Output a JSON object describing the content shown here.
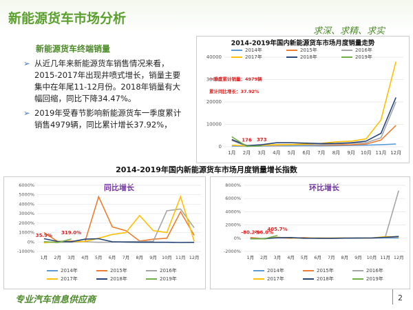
{
  "header": {
    "title": "新能源货车市场分析",
    "slogan": "求深、求精、求实"
  },
  "section": {
    "heading": "新能源货车终端销量",
    "bullets": [
      "从近几年来新能源货车销售情况来看，2015-2017年出现井喷式增长，销量主要集中在年尾11-12月份。2018年销量有大幅回缩，同比下降34.47%。",
      "2019年受春节影响新能源货车一季度累计销售4979辆，同比累计增长37.92%，"
    ]
  },
  "growth_title": "2014-2019年国内新能源货车市场月度销量增长指数",
  "footer": {
    "text": "专业汽车信息供应商",
    "page": "2"
  },
  "chart_data": [
    {
      "type": "line",
      "title": "2014-2019年国内新能源货车市场月度销量走势",
      "categories": [
        "1月",
        "2月",
        "3月",
        "4月",
        "5月",
        "6月",
        "7月",
        "8月",
        "9月",
        "10月",
        "11月",
        "12月"
      ],
      "ylim": [
        0,
        40000
      ],
      "yticks": [
        0,
        10000,
        20000,
        30000,
        40000
      ],
      "annotations": [
        "一季度累计销量：4979辆",
        "累计同比增长：37.92%"
      ],
      "series": [
        {
          "name": "2014年",
          "color": "#5b9bd5",
          "values": [
            300,
            200,
            300,
            400,
            400,
            500,
            400,
            500,
            600,
            700,
            900,
            1200
          ]
        },
        {
          "name": "2015年",
          "color": "#ed7d31",
          "values": [
            3300,
            300,
            600,
            500,
            1000,
            800,
            700,
            800,
            900,
            1200,
            3000,
            9500
          ]
        },
        {
          "name": "2016年",
          "color": "#a5a5a5",
          "values": [
            2800,
            200,
            500,
            600,
            700,
            800,
            900,
            1200,
            1500,
            1800,
            4000,
            20000
          ]
        },
        {
          "name": "2017年",
          "color": "#ffc000",
          "values": [
            700,
            300,
            700,
            900,
            1000,
            1200,
            1500,
            2200,
            2500,
            3500,
            12000,
            38000
          ]
        },
        {
          "name": "2018年",
          "color": "#264478",
          "values": [
            3200,
            500,
            900,
            1800,
            1800,
            1600,
            1400,
            1500,
            1800,
            2500,
            6000,
            22000
          ]
        },
        {
          "name": "2019年",
          "color": "#70ad47",
          "values": [
            4430,
            176,
            373,
            null,
            null,
            null,
            null,
            null,
            null,
            null,
            null,
            null
          ],
          "value_labels": [
            null,
            "176",
            "373",
            null,
            null,
            null,
            null,
            null,
            null,
            null,
            null,
            null
          ]
        }
      ]
    },
    {
      "type": "line",
      "title": "同比增长",
      "categories": [
        "1月",
        "2月",
        "3月",
        "4月",
        "5月",
        "6月",
        "7月",
        "8月",
        "9月",
        "10月",
        "11月",
        "12月"
      ],
      "ylim": [
        -1000,
        6000
      ],
      "yticks": [
        {
          "value": -1000,
          "label": "-1000%"
        },
        {
          "value": 0,
          "label": "0%"
        },
        {
          "value": 1000,
          "label": "1000%"
        },
        {
          "value": 2000,
          "label": "2000%"
        },
        {
          "value": 3000,
          "label": "3000%"
        },
        {
          "value": 4000,
          "label": "4000%"
        },
        {
          "value": 5000,
          "label": "5000%"
        },
        {
          "value": 6000,
          "label": "6000%"
        }
      ],
      "series": [
        {
          "name": "2014年",
          "color": "#5b9bd5",
          "values": [
            null,
            null,
            null,
            null,
            null,
            null,
            null,
            null,
            null,
            null,
            null,
            null
          ]
        },
        {
          "name": "2015年",
          "color": "#ed7d31",
          "values": [
            1000,
            50,
            100,
            30,
            4800,
            1600,
            1200,
            100,
            300,
            400,
            3200,
            700
          ]
        },
        {
          "name": "2016年",
          "color": "#a5a5a5",
          "values": [
            -20,
            -30,
            -20,
            20,
            -30,
            -20,
            30,
            50,
            70,
            3300,
            3500,
            1500
          ]
        },
        {
          "name": "2017年",
          "color": "#ffc000",
          "values": [
            -80,
            50,
            40,
            50,
            400,
            800,
            1000,
            2800,
            1200,
            1000,
            4800,
            90
          ]
        },
        {
          "name": "2018年",
          "color": "#264478",
          "values": [
            350,
            60,
            30,
            300,
            350,
            30,
            -10,
            -30,
            -30,
            -30,
            -50,
            -40
          ]
        },
        {
          "name": "2019年",
          "color": "#70ad47",
          "values": [
            35.9,
            -60,
            319.0,
            null,
            null,
            null,
            null,
            null,
            null,
            null,
            null,
            null
          ],
          "value_labels": [
            "35.9%",
            null,
            "319.0%",
            null,
            null,
            null,
            null,
            null,
            null,
            null,
            null,
            null
          ]
        }
      ]
    },
    {
      "type": "line",
      "title": "环比增长",
      "categories": [
        "1月",
        "2月",
        "3月",
        "4月",
        "5月",
        "6月",
        "7月",
        "8月",
        "9月",
        "10月",
        "11月",
        "12月"
      ],
      "ylim": [
        -2000,
        8000
      ],
      "yticks": [
        {
          "value": -2000,
          "label": "-2000%"
        },
        {
          "value": 0,
          "label": "0%"
        },
        {
          "value": 2000,
          "label": "2000%"
        },
        {
          "value": 4000,
          "label": "4000%"
        },
        {
          "value": 6000,
          "label": "6000%"
        },
        {
          "value": 8000,
          "label": "8000%"
        }
      ],
      "series": [
        {
          "name": "2014年",
          "color": "#5b9bd5",
          "values": [
            -50,
            -30,
            50,
            30,
            0,
            20,
            -20,
            20,
            20,
            20,
            30,
            40
          ]
        },
        {
          "name": "2015年",
          "color": "#ed7d31",
          "values": [
            100,
            -90,
            100,
            -20,
            100,
            -20,
            -10,
            10,
            10,
            30,
            150,
            210
          ]
        },
        {
          "name": "2016年",
          "color": "#a5a5a5",
          "values": [
            -70,
            -90,
            150,
            20,
            20,
            10,
            10,
            30,
            30,
            20,
            120,
            7200
          ]
        },
        {
          "name": "2017年",
          "color": "#ffc000",
          "values": [
            -90,
            -60,
            130,
            30,
            10,
            20,
            25,
            45,
            15,
            40,
            240,
            220
          ]
        },
        {
          "name": "2018年",
          "color": "#264478",
          "values": [
            -85,
            -85,
            80,
            100,
            0,
            -10,
            -10,
            10,
            20,
            40,
            140,
            270
          ]
        },
        {
          "name": "2019年",
          "color": "#70ad47",
          "values": [
            -80.2,
            -96.0,
            405.7,
            null,
            null,
            null,
            null,
            null,
            null,
            null,
            null,
            null
          ],
          "value_labels": [
            "-80.2%",
            "-96.0%",
            "405.7%",
            null,
            null,
            null,
            null,
            null,
            null,
            null,
            null,
            null
          ]
        }
      ]
    }
  ]
}
